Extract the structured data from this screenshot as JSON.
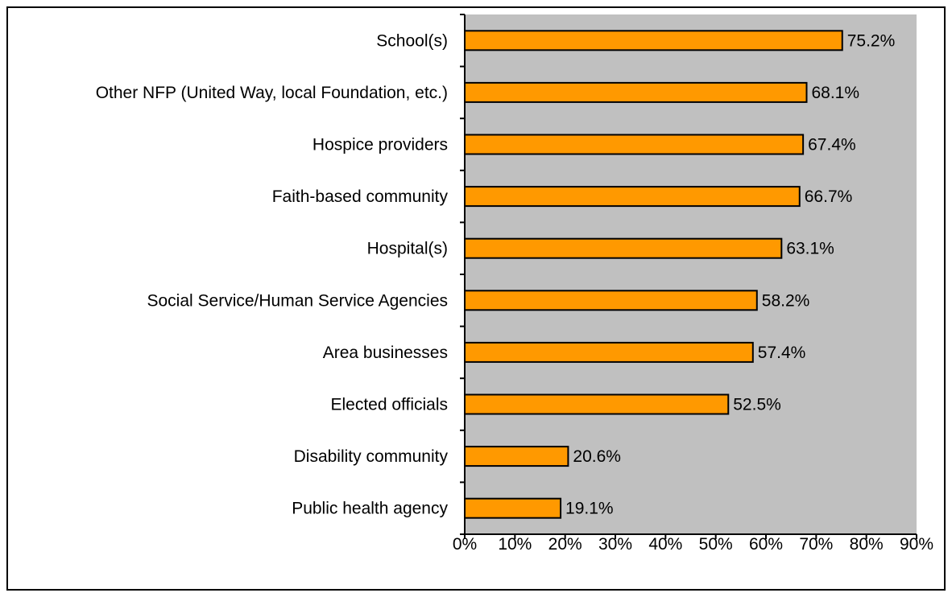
{
  "chart_data": {
    "type": "bar",
    "orientation": "horizontal",
    "categories": [
      "School(s)",
      "Other NFP (United Way, local Foundation, etc.)",
      "Hospice providers",
      "Faith-based community",
      "Hospital(s)",
      "Social Service/Human Service Agencies",
      "Area businesses",
      "Elected officials",
      "Disability community",
      "Public health agency"
    ],
    "values": [
      75.2,
      68.1,
      67.4,
      66.7,
      63.1,
      58.2,
      57.4,
      52.5,
      20.6,
      19.1
    ],
    "data_labels": [
      "75.2%",
      "68.1%",
      "67.4%",
      "66.7%",
      "63.1%",
      "58.2%",
      "57.4%",
      "52.5%",
      "20.6%",
      "19.1%"
    ],
    "x_ticks": [
      "0%",
      "10%",
      "20%",
      "30%",
      "40%",
      "50%",
      "60%",
      "70%",
      "80%",
      "90%"
    ],
    "xlim": [
      0,
      90
    ],
    "title": "",
    "xlabel": "",
    "ylabel": "",
    "grid": false,
    "legend": "none",
    "colors": {
      "bar_fill": "#FF9900",
      "bar_stroke": "#000000",
      "plot_background": "#C0C0C0",
      "axis": "#000000"
    }
  }
}
